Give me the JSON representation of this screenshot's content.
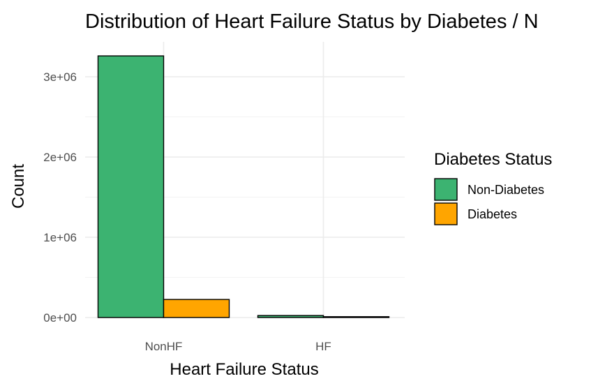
{
  "chart_data": {
    "type": "bar",
    "title": "Distribution of Heart Failure Status by Diabetes / N",
    "xlabel": "Heart Failure Status",
    "ylabel": "Count",
    "categories": [
      "NonHF",
      "HF"
    ],
    "series": [
      {
        "name": "Non-Diabetes",
        "color": "#3cb371",
        "values": [
          3260000,
          25000
        ]
      },
      {
        "name": "Diabetes",
        "color": "#ffa500",
        "values": [
          225000,
          8000
        ]
      }
    ],
    "ylim": [
      0,
      3400000
    ],
    "yticks": [
      0,
      1000000,
      2000000,
      3000000
    ],
    "ytick_labels": [
      "0e+00",
      "1e+06",
      "2e+06",
      "3e+06"
    ],
    "grid": true,
    "legend": {
      "title": "Diabetes Status",
      "position": "right"
    }
  }
}
